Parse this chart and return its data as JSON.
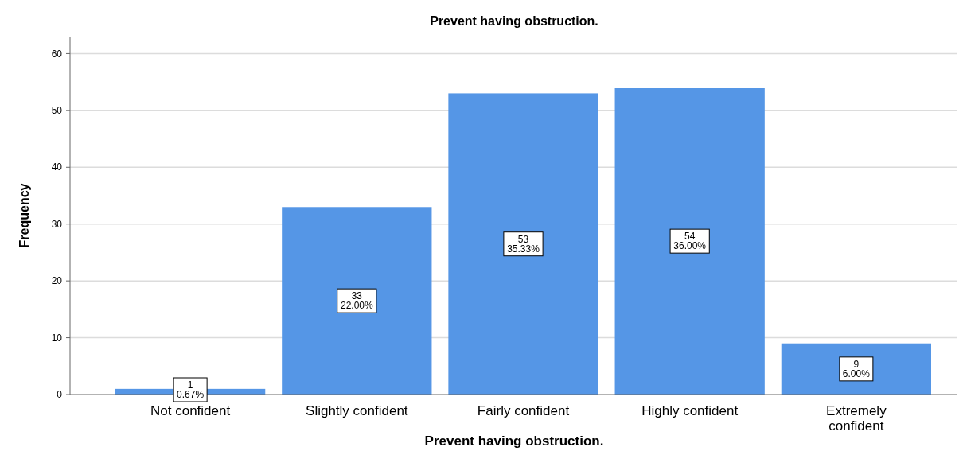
{
  "chart_data": {
    "type": "bar",
    "title": "Prevent having obstruction.",
    "xlabel": "Prevent having obstruction.",
    "ylabel": "Frequency",
    "categories": [
      "Not confident",
      "Slightly confident",
      "Fairly confident",
      "Highly confident",
      "Extremely confident"
    ],
    "values": [
      1,
      33,
      53,
      54,
      9
    ],
    "value_labels": [
      "1\n0.67%",
      "33\n22.00%",
      "53\n35.33%",
      "54\n36.00%",
      "9\n6.00%"
    ],
    "color": "#5596e6",
    "ylim": [
      0,
      63
    ],
    "yticks": [
      0,
      10,
      20,
      30,
      40,
      50,
      60
    ],
    "grid": "y"
  }
}
